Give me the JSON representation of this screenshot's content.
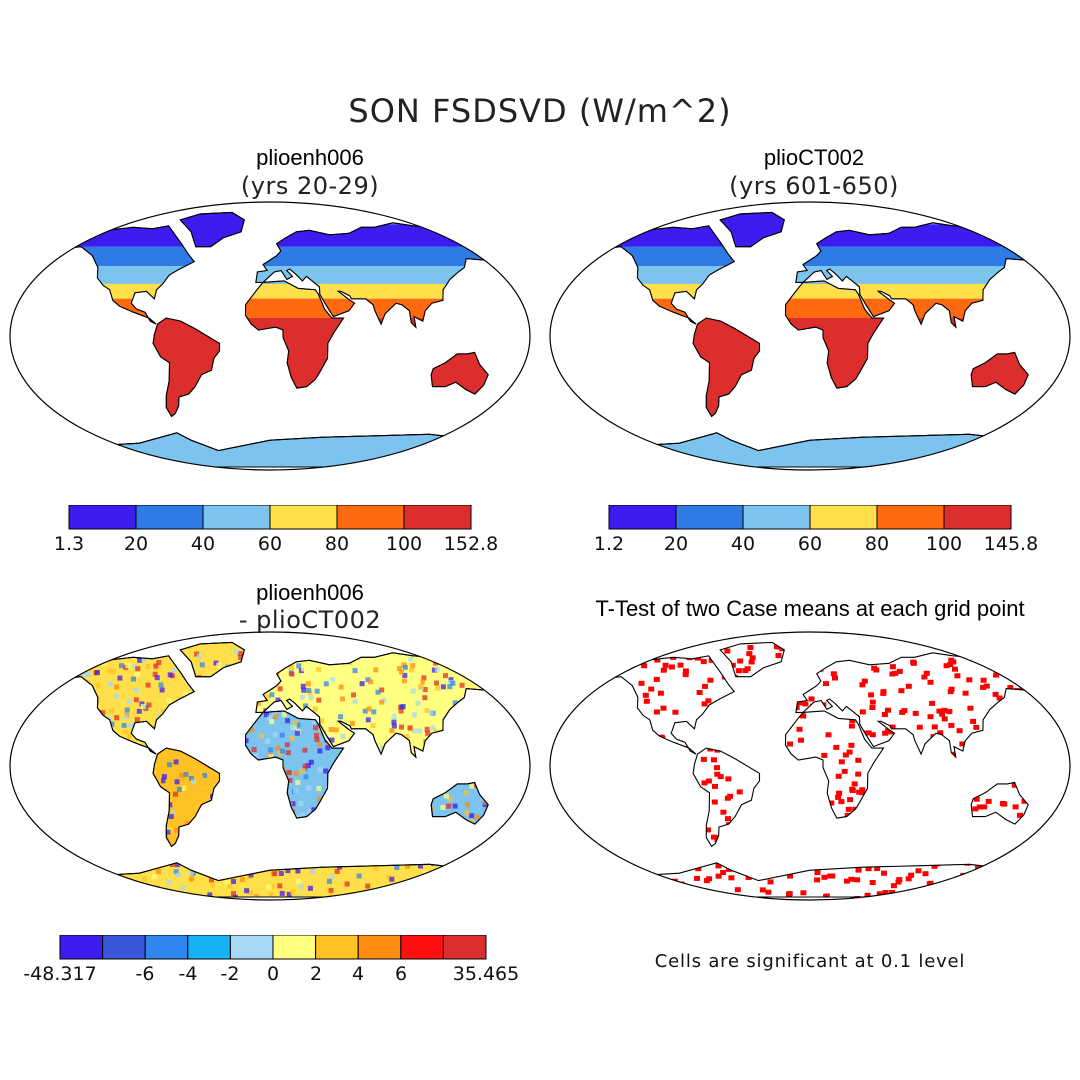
{
  "title": "SON FSDSVD (W/m^2)",
  "panels": {
    "top_left": {
      "title": "plioenh006",
      "subtitle": "(yrs 20-29)"
    },
    "top_right": {
      "title": "plioCT002",
      "subtitle": "(yrs 601-650)"
    },
    "bottom_left": {
      "title": "plioenh006",
      "subtitle": "- plioCT002"
    },
    "bottom_right": {
      "title": "T-Test of two Case means at each grid point",
      "note": "Cells are significant at 0.1 level"
    }
  },
  "colorbars": {
    "abs1": {
      "colors": [
        "#3d1cf0",
        "#2f7be6",
        "#7cc4ee",
        "#ffe04a",
        "#ff6a10",
        "#dd2e2e"
      ],
      "labels": [
        "1.3",
        "20",
        "40",
        "60",
        "80",
        "100",
        "152.8"
      ]
    },
    "abs2": {
      "colors": [
        "#3d1cf0",
        "#2f7be6",
        "#7cc4ee",
        "#ffe04a",
        "#ff6a10",
        "#dd2e2e"
      ],
      "labels": [
        "1.2",
        "20",
        "40",
        "60",
        "80",
        "100",
        "145.8"
      ]
    },
    "diff": {
      "colors": [
        "#3d1cf0",
        "#3957db",
        "#2f86ee",
        "#17b2f6",
        "#a7d8f5",
        "#ffff80",
        "#ffc224",
        "#ff8a10",
        "#ff1010",
        "#dd2e2e"
      ],
      "labels": [
        "-48.317",
        "-6",
        "-4",
        "-2",
        "0",
        "2",
        "4",
        "6",
        "35.465"
      ]
    }
  },
  "colors": {
    "significant": "#ff0000",
    "coastline": "#000000"
  }
}
